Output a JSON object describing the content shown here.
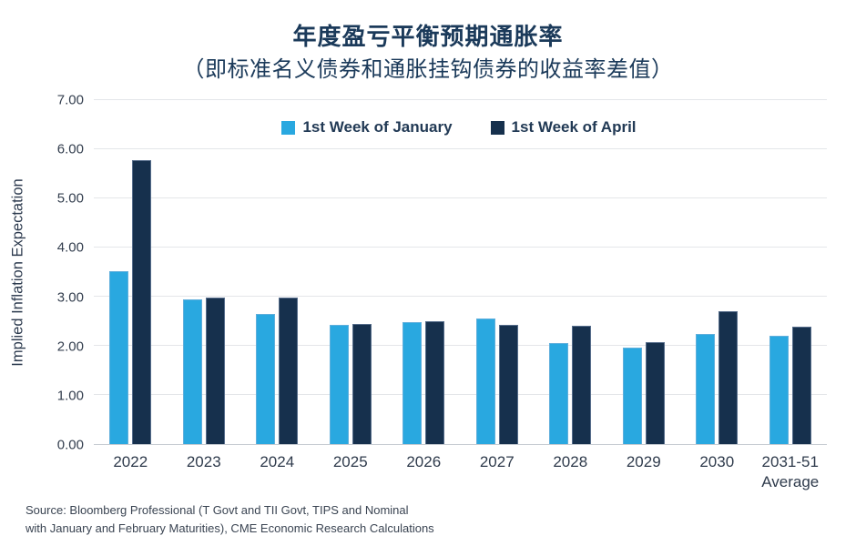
{
  "header": {
    "title": "年度盈亏平衡预期通胀率",
    "subtitle": "（即标准名义债券和通胀挂钩债券的收益率差值）"
  },
  "chart_data": {
    "type": "bar",
    "title": "年度盈亏平衡预期通胀率",
    "subtitle": "（即标准名义债券和通胀挂钩债券的收益率差值）",
    "xlabel": "",
    "ylabel": "Implied Inflation Expectation",
    "ylim": [
      0,
      7
    ],
    "y_ticks": [
      "0.00",
      "1.00",
      "2.00",
      "3.00",
      "4.00",
      "5.00",
      "6.00",
      "7.00"
    ],
    "grid": true,
    "legend_position": "top-center",
    "categories": [
      "2022",
      "2023",
      "2024",
      "2025",
      "2026",
      "2027",
      "2028",
      "2029",
      "2030",
      "2031-51\nAverage"
    ],
    "series": [
      {
        "name": "1st Week of January",
        "color": "#29a8e0",
        "values": [
          3.51,
          2.95,
          2.64,
          2.42,
          2.49,
          2.56,
          2.05,
          1.96,
          2.25,
          2.21
        ]
      },
      {
        "name": "1st Week of April",
        "color": "#16304d",
        "values": [
          5.78,
          2.98,
          2.99,
          2.45,
          2.5,
          2.43,
          2.41,
          2.08,
          2.7,
          2.39
        ]
      }
    ]
  },
  "colors": {
    "january": "#29a8e0",
    "april": "#16304d",
    "title_text": "#1b3a5a",
    "axis_text": "#333e4e",
    "gridline": "#e4e6e9"
  },
  "source": {
    "line1": "Source: Bloomberg Professional (T Govt and TII Govt, TIPS and Nominal",
    "line2": "with January and February Maturities), CME Economic Research Calculations"
  }
}
